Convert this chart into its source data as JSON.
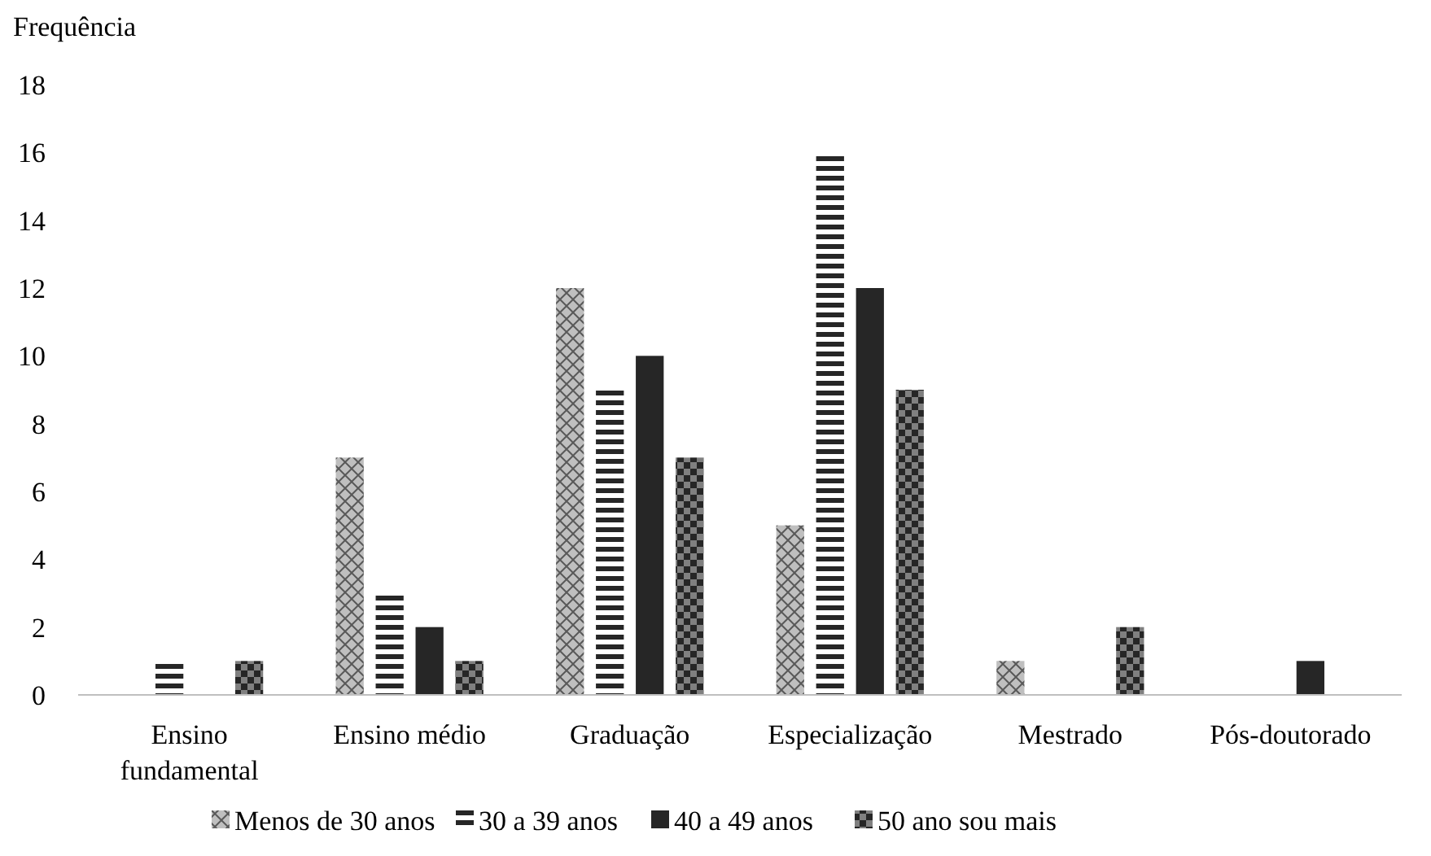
{
  "chart_data": {
    "type": "bar",
    "ylabel": "Frequência",
    "categories": [
      "Ensino fundamental",
      "Ensino médio",
      "Graduação",
      "Especialização",
      "Mestrado",
      "Pós-doutorado"
    ],
    "series": [
      {
        "name": "Menos de 30 anos",
        "color": "#bfbfbf",
        "values": [
          0,
          7,
          12,
          5,
          1,
          0
        ]
      },
      {
        "name": "30 a 39 anos",
        "color": "#262626",
        "values": [
          1,
          3,
          9,
          16,
          0,
          0
        ]
      },
      {
        "name": "40 a 49 anos",
        "color": "#262626",
        "values": [
          0,
          2,
          10,
          12,
          0,
          1
        ]
      },
      {
        "name": "50 ano sou mais",
        "color": "#262626",
        "values": [
          1,
          1,
          7,
          9,
          2,
          0
        ]
      }
    ],
    "ylim": [
      0,
      18
    ],
    "yticks": [
      0,
      2,
      4,
      6,
      8,
      10,
      12,
      14,
      16,
      18
    ],
    "grid": false,
    "legend": "bottom"
  }
}
